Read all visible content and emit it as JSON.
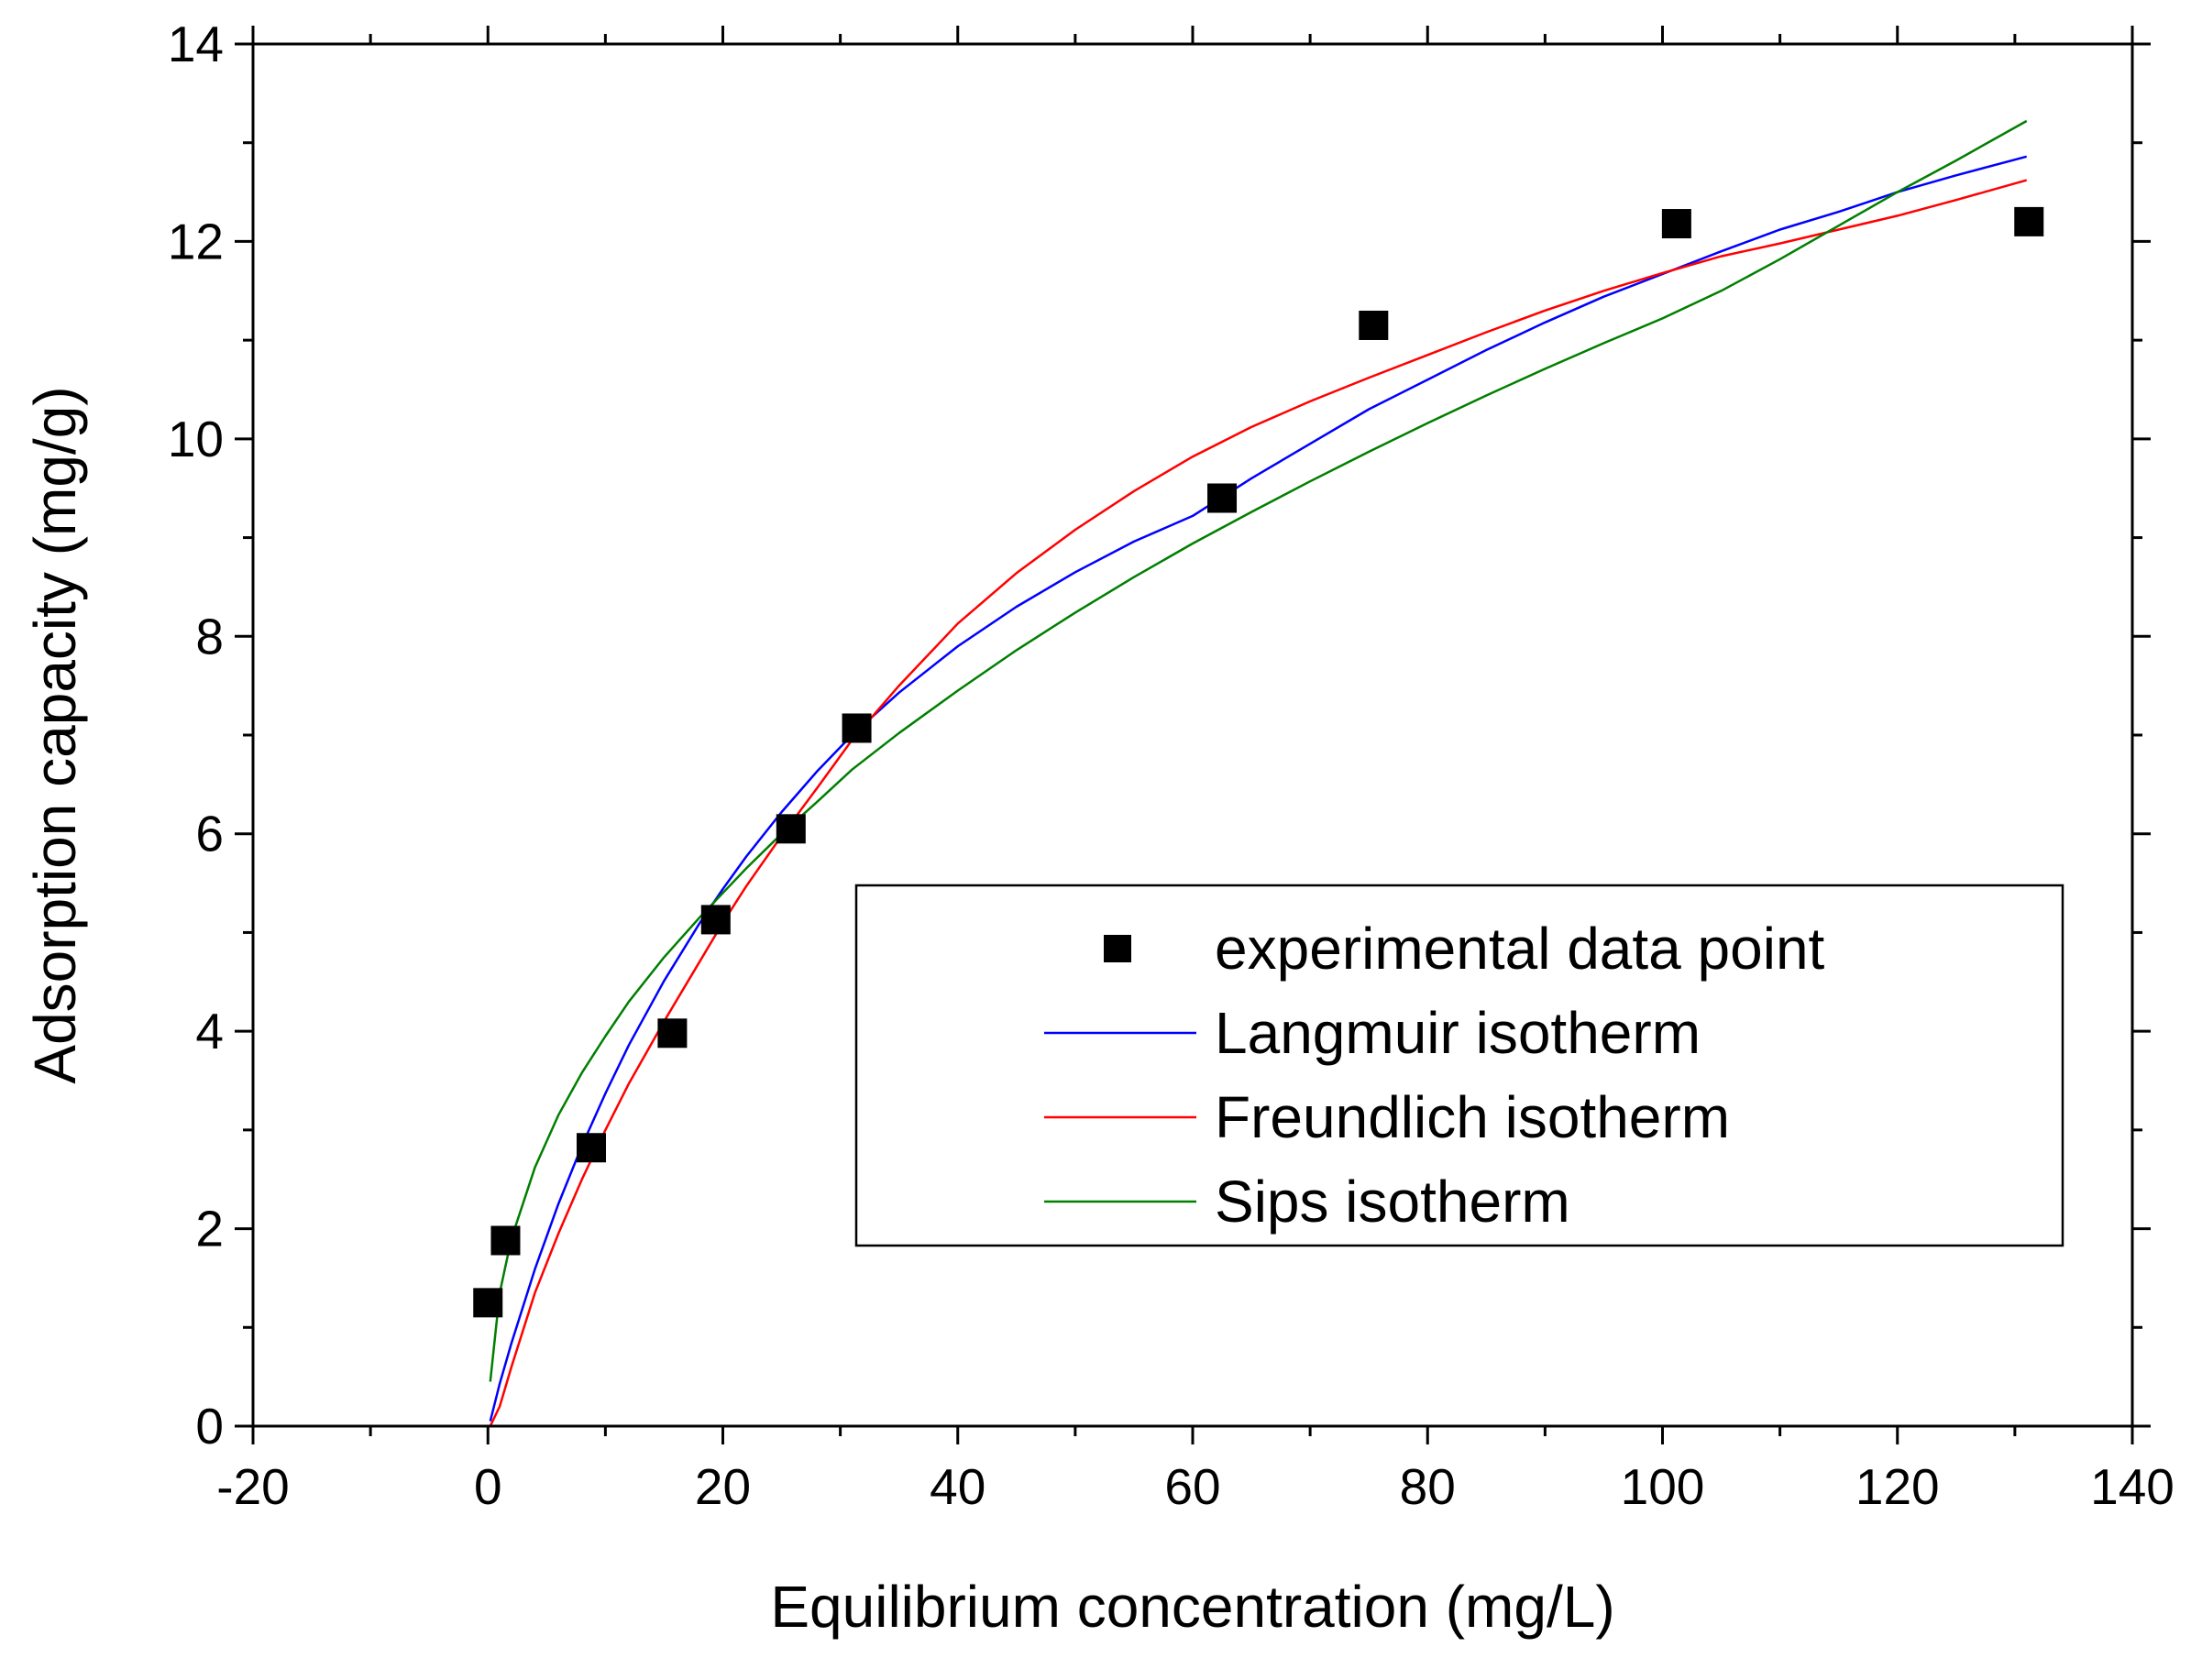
{
  "chart_data": {
    "type": "scatter",
    "title": "",
    "xlabel": "Equilibrium concentration (mg/L)",
    "ylabel": "Adsorption capacity (mg/g)",
    "xlim": [
      -20,
      140
    ],
    "ylim": [
      0,
      14
    ],
    "x_ticks": [
      -20,
      0,
      20,
      40,
      60,
      80,
      100,
      120,
      140
    ],
    "y_ticks": [
      0,
      2,
      4,
      6,
      8,
      10,
      12,
      14
    ],
    "x_tick_labels": [
      "-20",
      "0",
      "20",
      "40",
      "60",
      "80",
      "100",
      "120",
      "140"
    ],
    "y_tick_labels": [
      "0",
      "2",
      "4",
      "6",
      "8",
      "10",
      "12",
      "14"
    ],
    "grid": false,
    "legend_position": "center-right",
    "series": [
      {
        "name": "experimental data point",
        "kind": "markers",
        "color": "#000000",
        "x": [
          0.0,
          1.5,
          8.8,
          15.7,
          19.4,
          25.8,
          31.4,
          62.5,
          75.4,
          101.2,
          131.2
        ],
        "y": [
          1.25,
          1.88,
          2.82,
          3.98,
          5.13,
          6.05,
          7.07,
          9.4,
          11.15,
          12.18,
          12.2
        ]
      },
      {
        "name": "Langmuir isotherm",
        "kind": "line",
        "color": "#0000ff",
        "x": [
          0.2,
          1,
          2,
          4,
          6,
          8,
          10,
          12,
          15,
          18,
          20,
          22,
          25,
          28,
          31,
          35,
          40,
          45,
          50,
          55,
          60,
          65,
          70,
          75,
          80,
          85,
          90,
          95,
          100,
          105,
          110,
          115,
          120,
          125,
          131
        ],
        "y": [
          0.05,
          0.43,
          0.84,
          1.59,
          2.25,
          2.84,
          3.37,
          3.86,
          4.51,
          5.09,
          5.44,
          5.77,
          6.22,
          6.63,
          7.0,
          7.43,
          7.9,
          8.3,
          8.65,
          8.96,
          9.22,
          9.6,
          9.95,
          10.3,
          10.6,
          10.9,
          11.18,
          11.44,
          11.67,
          11.9,
          12.12,
          12.3,
          12.5,
          12.67,
          12.86
        ]
      },
      {
        "name": "Freundlich isotherm",
        "kind": "line",
        "color": "#ff0000",
        "x": [
          0.2,
          1,
          2,
          4,
          6,
          8,
          10,
          12,
          15,
          18,
          20,
          22,
          25,
          28,
          31,
          35,
          40,
          45,
          50,
          55,
          60,
          65,
          70,
          75,
          80,
          85,
          90,
          95,
          100,
          105,
          110,
          115,
          120,
          125,
          131
        ],
        "y": [
          0.0,
          0.2,
          0.6,
          1.35,
          1.95,
          2.5,
          3.0,
          3.47,
          4.1,
          4.7,
          5.1,
          5.47,
          5.98,
          6.46,
          6.95,
          7.5,
          8.13,
          8.64,
          9.08,
          9.47,
          9.82,
          10.12,
          10.38,
          10.62,
          10.85,
          11.08,
          11.3,
          11.5,
          11.68,
          11.85,
          11.98,
          12.12,
          12.26,
          12.42,
          12.62
        ]
      },
      {
        "name": "Sips isotherm",
        "kind": "line",
        "color": "#007f00",
        "x": [
          0.2,
          1,
          2,
          4,
          6,
          8,
          10,
          12,
          15,
          18,
          20,
          22,
          25,
          28,
          31,
          35,
          40,
          45,
          50,
          55,
          60,
          65,
          70,
          75,
          80,
          85,
          90,
          95,
          100,
          105,
          110,
          115,
          120,
          125,
          131
        ],
        "y": [
          0.45,
          1.35,
          1.9,
          2.62,
          3.15,
          3.58,
          3.95,
          4.3,
          4.75,
          5.15,
          5.4,
          5.65,
          6.0,
          6.32,
          6.65,
          7.02,
          7.45,
          7.86,
          8.24,
          8.6,
          8.94,
          9.26,
          9.57,
          9.87,
          10.16,
          10.44,
          10.71,
          10.97,
          11.22,
          11.5,
          11.82,
          12.16,
          12.5,
          12.82,
          13.22
        ]
      }
    ]
  }
}
